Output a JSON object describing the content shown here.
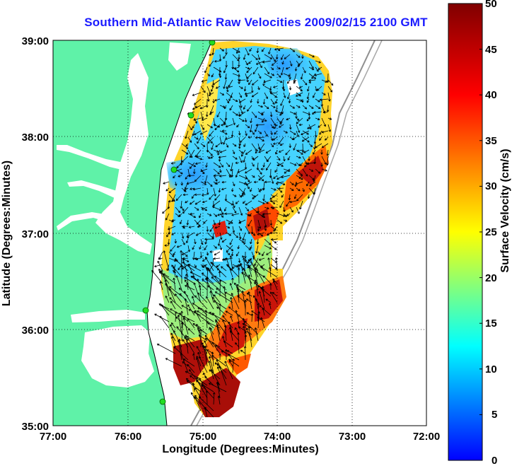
{
  "title": "Southern Mid-Atlantic Raw Velocities 2009/02/15 2100 GMT",
  "axes": {
    "xlabel": "Longitude (Degrees:Minutes)",
    "ylabel": "Latitude (Degrees:Minutes)",
    "x_ticks": [
      "77:00",
      "76:00",
      "75:00",
      "74:00",
      "73:00",
      "72:00"
    ],
    "y_ticks": [
      "39:00",
      "38:00",
      "37:00",
      "36:00",
      "35:00"
    ],
    "xlim": [
      -77,
      -72
    ],
    "ylim": [
      35,
      39
    ]
  },
  "colorbar": {
    "label": "Surface Velocity (cm/s)",
    "ticks": [
      "50",
      "45",
      "40",
      "35",
      "30",
      "25",
      "20",
      "15",
      "10",
      "5",
      "0"
    ],
    "range": [
      0,
      50
    ],
    "colormap": [
      "#0000ff",
      "#00ffff",
      "#ffff00",
      "#ff0000",
      "#800000"
    ]
  },
  "colors": {
    "land": "#5ff2a8",
    "water": "#ffffff",
    "coast_outline": "#000000",
    "bathymetry": "#909090",
    "station_marker": "#22dd22",
    "title": "#1a1aff",
    "vector": "#000000"
  },
  "map": {
    "type": "surface-current velocity field",
    "region": "Southern Mid-Atlantic Bight",
    "grid": "dotted",
    "stations": 5
  }
}
